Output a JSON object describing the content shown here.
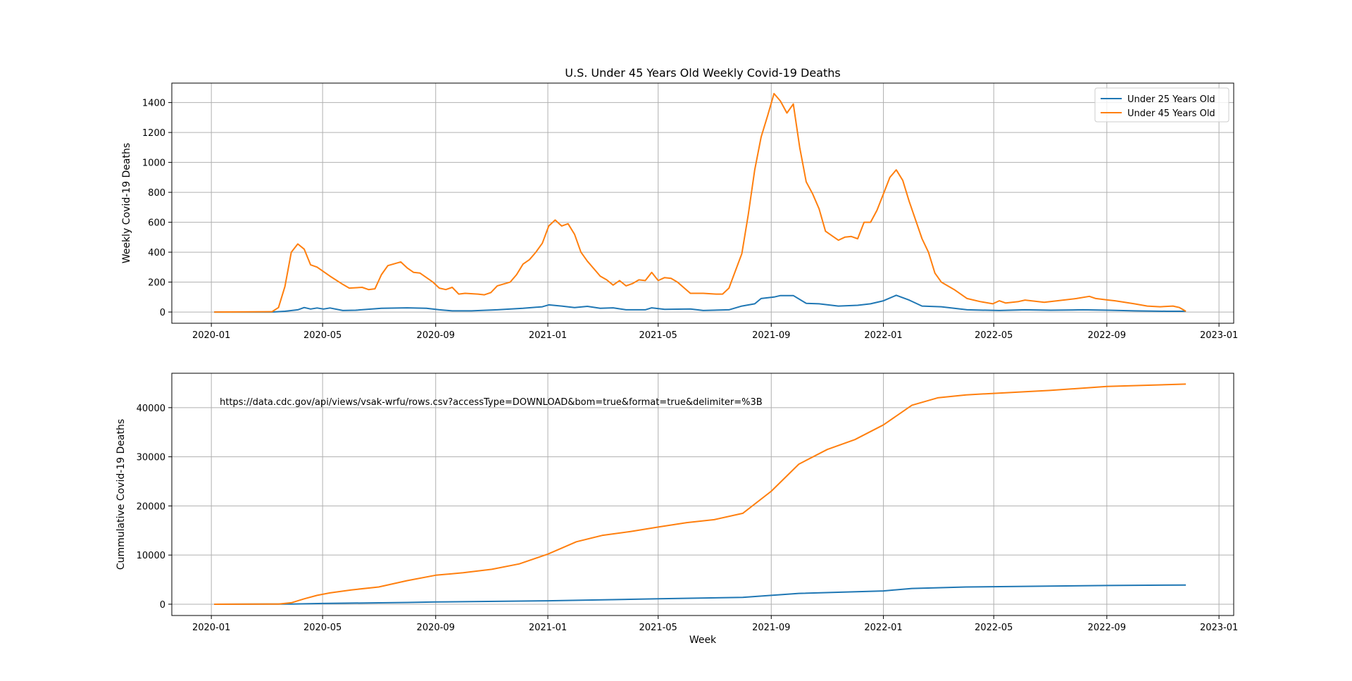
{
  "chart_data": [
    {
      "type": "line",
      "title": "U.S. Under 45 Years Old Weekly Covid-19 Deaths",
      "xlabel": "",
      "ylabel": "Weekly Covid-19 Deaths",
      "x_ticks": [
        "2020-01",
        "2020-05",
        "2020-09",
        "2021-01",
        "2021-05",
        "2021-09",
        "2022-01",
        "2022-05",
        "2022-09",
        "2023-01"
      ],
      "y_ticks": [
        0,
        200,
        400,
        600,
        800,
        1000,
        1200,
        1400
      ],
      "ylim": [
        -75,
        1530
      ],
      "xlim": [
        "2019-11-19",
        "2023-01-17"
      ],
      "grid": true,
      "legend": "top-right",
      "series": [
        {
          "name": "Under 25 Years Old",
          "color": "#1f77b4",
          "points": [
            [
              "2020-01-04",
              0
            ],
            [
              "2020-02-01",
              0
            ],
            [
              "2020-03-07",
              0
            ],
            [
              "2020-03-21",
              5
            ],
            [
              "2020-04-04",
              15
            ],
            [
              "2020-04-11",
              30
            ],
            [
              "2020-04-18",
              20
            ],
            [
              "2020-04-25",
              27
            ],
            [
              "2020-05-02",
              20
            ],
            [
              "2020-05-09",
              27
            ],
            [
              "2020-05-23",
              10
            ],
            [
              "2020-06-06",
              12
            ],
            [
              "2020-07-04",
              25
            ],
            [
              "2020-08-01",
              28
            ],
            [
              "2020-08-22",
              25
            ],
            [
              "2020-09-05",
              15
            ],
            [
              "2020-09-19",
              8
            ],
            [
              "2020-10-10",
              8
            ],
            [
              "2020-11-07",
              15
            ],
            [
              "2020-12-05",
              25
            ],
            [
              "2020-12-26",
              35
            ],
            [
              "2021-01-02",
              48
            ],
            [
              "2021-01-16",
              40
            ],
            [
              "2021-01-30",
              30
            ],
            [
              "2021-02-13",
              38
            ],
            [
              "2021-02-27",
              25
            ],
            [
              "2021-03-13",
              28
            ],
            [
              "2021-03-27",
              15
            ],
            [
              "2021-04-17",
              15
            ],
            [
              "2021-04-24",
              28
            ],
            [
              "2021-05-08",
              18
            ],
            [
              "2021-06-05",
              20
            ],
            [
              "2021-06-19",
              10
            ],
            [
              "2021-07-17",
              15
            ],
            [
              "2021-07-31",
              40
            ],
            [
              "2021-08-14",
              55
            ],
            [
              "2021-08-21",
              90
            ],
            [
              "2021-09-04",
              100
            ],
            [
              "2021-09-11",
              110
            ],
            [
              "2021-09-25",
              110
            ],
            [
              "2021-10-09",
              58
            ],
            [
              "2021-10-23",
              55
            ],
            [
              "2021-11-13",
              40
            ],
            [
              "2021-12-04",
              45
            ],
            [
              "2021-12-18",
              55
            ],
            [
              "2022-01-01",
              75
            ],
            [
              "2022-01-15",
              112
            ],
            [
              "2022-01-29",
              80
            ],
            [
              "2022-02-12",
              40
            ],
            [
              "2022-03-05",
              35
            ],
            [
              "2022-04-02",
              15
            ],
            [
              "2022-05-07",
              10
            ],
            [
              "2022-06-04",
              15
            ],
            [
              "2022-07-02",
              12
            ],
            [
              "2022-08-06",
              15
            ],
            [
              "2022-09-03",
              12
            ],
            [
              "2022-10-01",
              8
            ],
            [
              "2022-11-05",
              5
            ],
            [
              "2022-11-26",
              5
            ]
          ]
        },
        {
          "name": "Under 45 Years Old",
          "color": "#ff7f0e",
          "points": [
            [
              "2020-01-04",
              0
            ],
            [
              "2020-03-07",
              2
            ],
            [
              "2020-03-14",
              30
            ],
            [
              "2020-03-21",
              170
            ],
            [
              "2020-03-28",
              400
            ],
            [
              "2020-04-04",
              455
            ],
            [
              "2020-04-11",
              420
            ],
            [
              "2020-04-18",
              315
            ],
            [
              "2020-04-25",
              300
            ],
            [
              "2020-05-09",
              240
            ],
            [
              "2020-05-23",
              185
            ],
            [
              "2020-05-30",
              160
            ],
            [
              "2020-06-13",
              165
            ],
            [
              "2020-06-20",
              150
            ],
            [
              "2020-06-27",
              155
            ],
            [
              "2020-07-04",
              250
            ],
            [
              "2020-07-11",
              310
            ],
            [
              "2020-07-25",
              335
            ],
            [
              "2020-08-01",
              295
            ],
            [
              "2020-08-08",
              265
            ],
            [
              "2020-08-15",
              260
            ],
            [
              "2020-08-29",
              200
            ],
            [
              "2020-09-05",
              160
            ],
            [
              "2020-09-12",
              150
            ],
            [
              "2020-09-19",
              165
            ],
            [
              "2020-09-26",
              120
            ],
            [
              "2020-10-03",
              125
            ],
            [
              "2020-10-17",
              120
            ],
            [
              "2020-10-24",
              115
            ],
            [
              "2020-10-31",
              130
            ],
            [
              "2020-11-07",
              175
            ],
            [
              "2020-11-21",
              200
            ],
            [
              "2020-11-28",
              250
            ],
            [
              "2020-12-05",
              320
            ],
            [
              "2020-12-12",
              350
            ],
            [
              "2020-12-19",
              400
            ],
            [
              "2020-12-26",
              460
            ],
            [
              "2021-01-02",
              575
            ],
            [
              "2021-01-09",
              615
            ],
            [
              "2021-01-16",
              575
            ],
            [
              "2021-01-23",
              590
            ],
            [
              "2021-01-30",
              520
            ],
            [
              "2021-02-06",
              400
            ],
            [
              "2021-02-13",
              340
            ],
            [
              "2021-02-27",
              240
            ],
            [
              "2021-03-06",
              215
            ],
            [
              "2021-03-13",
              180
            ],
            [
              "2021-03-20",
              210
            ],
            [
              "2021-03-27",
              175
            ],
            [
              "2021-04-03",
              190
            ],
            [
              "2021-04-10",
              215
            ],
            [
              "2021-04-17",
              210
            ],
            [
              "2021-04-24",
              265
            ],
            [
              "2021-05-01",
              210
            ],
            [
              "2021-05-08",
              230
            ],
            [
              "2021-05-15",
              225
            ],
            [
              "2021-05-22",
              200
            ],
            [
              "2021-06-05",
              125
            ],
            [
              "2021-06-19",
              125
            ],
            [
              "2021-07-03",
              120
            ],
            [
              "2021-07-10",
              120
            ],
            [
              "2021-07-17",
              160
            ],
            [
              "2021-07-31",
              390
            ],
            [
              "2021-08-07",
              650
            ],
            [
              "2021-08-14",
              950
            ],
            [
              "2021-08-21",
              1170
            ],
            [
              "2021-08-28",
              1310
            ],
            [
              "2021-09-04",
              1460
            ],
            [
              "2021-09-11",
              1410
            ],
            [
              "2021-09-18",
              1330
            ],
            [
              "2021-09-25",
              1390
            ],
            [
              "2021-10-02",
              1100
            ],
            [
              "2021-10-09",
              870
            ],
            [
              "2021-10-16",
              790
            ],
            [
              "2021-10-23",
              690
            ],
            [
              "2021-10-30",
              540
            ],
            [
              "2021-11-06",
              510
            ],
            [
              "2021-11-13",
              480
            ],
            [
              "2021-11-20",
              500
            ],
            [
              "2021-11-27",
              505
            ],
            [
              "2021-12-04",
              490
            ],
            [
              "2021-12-11",
              600
            ],
            [
              "2021-12-18",
              600
            ],
            [
              "2021-12-25",
              680
            ],
            [
              "2022-01-01",
              790
            ],
            [
              "2022-01-08",
              900
            ],
            [
              "2022-01-15",
              950
            ],
            [
              "2022-01-22",
              880
            ],
            [
              "2022-01-29",
              740
            ],
            [
              "2022-02-12",
              490
            ],
            [
              "2022-02-19",
              400
            ],
            [
              "2022-02-26",
              260
            ],
            [
              "2022-03-05",
              200
            ],
            [
              "2022-03-19",
              150
            ],
            [
              "2022-04-02",
              90
            ],
            [
              "2022-04-16",
              70
            ],
            [
              "2022-04-30",
              55
            ],
            [
              "2022-05-07",
              75
            ],
            [
              "2022-05-14",
              60
            ],
            [
              "2022-05-28",
              70
            ],
            [
              "2022-06-04",
              80
            ],
            [
              "2022-06-25",
              65
            ],
            [
              "2022-07-09",
              75
            ],
            [
              "2022-07-30",
              90
            ],
            [
              "2022-08-13",
              105
            ],
            [
              "2022-08-20",
              90
            ],
            [
              "2022-09-03",
              80
            ],
            [
              "2022-09-10",
              75
            ],
            [
              "2022-10-01",
              55
            ],
            [
              "2022-10-15",
              40
            ],
            [
              "2022-10-29",
              35
            ],
            [
              "2022-11-12",
              40
            ],
            [
              "2022-11-19",
              30
            ],
            [
              "2022-11-26",
              5
            ]
          ]
        }
      ]
    },
    {
      "type": "line",
      "title": "",
      "xlabel": "Week",
      "ylabel": "Cummulative Covid-19 Deaths",
      "annotation": "https://data.cdc.gov/api/views/vsak-wrfu/rows.csv?accessType=DOWNLOAD&bom=true&format=true&delimiter=%3B",
      "x_ticks": [
        "2020-01",
        "2020-05",
        "2020-09",
        "2021-01",
        "2021-05",
        "2021-09",
        "2022-01",
        "2022-05",
        "2022-09",
        "2023-01"
      ],
      "y_ticks": [
        0,
        10000,
        20000,
        30000,
        40000
      ],
      "ylim": [
        -2300,
        47000
      ],
      "xlim": [
        "2019-11-19",
        "2023-01-17"
      ],
      "grid": true,
      "series": [
        {
          "name": "Under 25 Years Old",
          "color": "#1f77b4",
          "points": [
            [
              "2020-01-04",
              0
            ],
            [
              "2020-03-28",
              30
            ],
            [
              "2020-05-01",
              150
            ],
            [
              "2020-08-01",
              350
            ],
            [
              "2020-09-01",
              450
            ],
            [
              "2021-01-01",
              700
            ],
            [
              "2021-05-01",
              1100
            ],
            [
              "2021-08-01",
              1400
            ],
            [
              "2021-09-01",
              1800
            ],
            [
              "2021-10-01",
              2200
            ],
            [
              "2022-01-01",
              2700
            ],
            [
              "2022-02-01",
              3200
            ],
            [
              "2022-04-01",
              3500
            ],
            [
              "2022-09-01",
              3800
            ],
            [
              "2022-11-26",
              3900
            ]
          ]
        },
        {
          "name": "Under 45 Years Old",
          "color": "#ff7f0e",
          "points": [
            [
              "2020-01-04",
              0
            ],
            [
              "2020-03-14",
              30
            ],
            [
              "2020-03-28",
              300
            ],
            [
              "2020-04-11",
              1100
            ],
            [
              "2020-04-25",
              1800
            ],
            [
              "2020-05-09",
              2300
            ],
            [
              "2020-06-01",
              2900
            ],
            [
              "2020-07-01",
              3500
            ],
            [
              "2020-08-01",
              4800
            ],
            [
              "2020-09-01",
              5900
            ],
            [
              "2020-10-01",
              6400
            ],
            [
              "2020-11-01",
              7100
            ],
            [
              "2020-12-01",
              8200
            ],
            [
              "2021-01-01",
              10200
            ],
            [
              "2021-02-01",
              12700
            ],
            [
              "2021-03-01",
              14000
            ],
            [
              "2021-04-01",
              14800
            ],
            [
              "2021-05-01",
              15700
            ],
            [
              "2021-06-01",
              16600
            ],
            [
              "2021-07-01",
              17200
            ],
            [
              "2021-08-01",
              18500
            ],
            [
              "2021-09-01",
              23000
            ],
            [
              "2021-10-01",
              28500
            ],
            [
              "2021-11-01",
              31500
            ],
            [
              "2021-12-01",
              33500
            ],
            [
              "2022-01-01",
              36500
            ],
            [
              "2022-02-01",
              40500
            ],
            [
              "2022-03-01",
              42000
            ],
            [
              "2022-04-01",
              42600
            ],
            [
              "2022-05-01",
              42900
            ],
            [
              "2022-07-01",
              43500
            ],
            [
              "2022-09-01",
              44300
            ],
            [
              "2022-11-26",
              44800
            ]
          ]
        }
      ]
    }
  ]
}
